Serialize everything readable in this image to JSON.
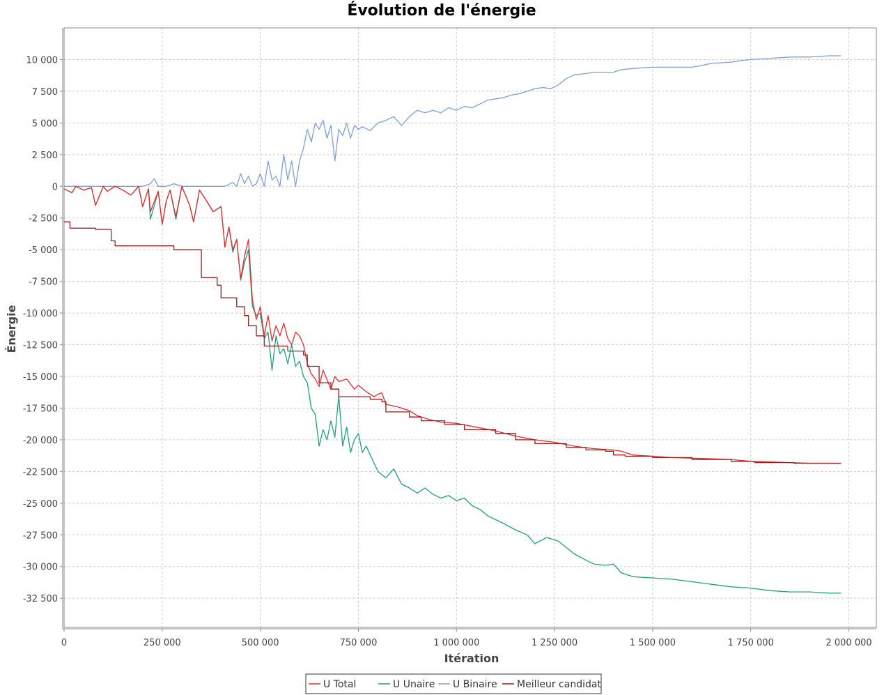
{
  "chart_data": {
    "type": "line",
    "title": "Évolution de l'énergie",
    "xlabel": "Itération",
    "ylabel": "Énergie",
    "xlim": [
      0,
      2070000
    ],
    "ylim": [
      -34800,
      12500
    ],
    "grid": true,
    "legend_position": "bottom-center",
    "x_ticks": [
      0,
      250000,
      500000,
      750000,
      1000000,
      1250000,
      1500000,
      1750000,
      2000000
    ],
    "x_tick_labels": [
      "0",
      "250 000",
      "500 000",
      "750 000",
      "1 000 000",
      "1 250 000",
      "1 500 000",
      "1 750 000",
      "2 000 000"
    ],
    "y_ticks": [
      10000,
      7500,
      5000,
      2500,
      0,
      -2500,
      -5000,
      -7500,
      -10000,
      -12500,
      -15000,
      -17500,
      -20000,
      -22500,
      -25000,
      -27500,
      -30000,
      -32500
    ],
    "y_tick_labels": [
      "10 000",
      "7 500",
      "5 000",
      "2 500",
      "0",
      "-2 500",
      "-5 000",
      "-7 500",
      "-10 000",
      "-12 500",
      "-15 000",
      "-17 500",
      "-20 000",
      "-22 500",
      "-25 000",
      "-27 500",
      "-30 000",
      "-32 500"
    ],
    "series": [
      {
        "name": "U Total",
        "color": "#e8292b",
        "x": [
          0,
          20000,
          30000,
          50000,
          70000,
          80000,
          100000,
          110000,
          130000,
          150000,
          170000,
          190000,
          200000,
          215000,
          220000,
          240000,
          250000,
          260000,
          270000,
          285000,
          300000,
          320000,
          330000,
          345000,
          360000,
          380000,
          400000,
          410000,
          420000,
          430000,
          440000,
          450000,
          460000,
          470000,
          480000,
          490000,
          500000,
          510000,
          520000,
          530000,
          540000,
          550000,
          560000,
          570000,
          580000,
          590000,
          600000,
          610000,
          620000,
          630000,
          640000,
          650000,
          660000,
          680000,
          690000,
          700000,
          720000,
          740000,
          750000,
          770000,
          790000,
          800000,
          810000,
          820000,
          850000,
          880000,
          900000,
          930000,
          960000,
          1000000,
          1050000,
          1100000,
          1150000,
          1200000,
          1250000,
          1300000,
          1350000,
          1400000,
          1420000,
          1450000,
          1500000,
          1550000,
          1600000,
          1650000,
          1700000,
          1750000,
          1800000,
          1850000,
          1900000,
          1950000,
          1980000
        ],
        "y": [
          -200,
          -500,
          0,
          -300,
          -100,
          -1500,
          0,
          -400,
          0,
          -300,
          -700,
          0,
          -1600,
          -200,
          -2000,
          -400,
          -3000,
          -1200,
          -300,
          -2400,
          0,
          -1500,
          -2800,
          -300,
          -1000,
          -2000,
          -1600,
          -4800,
          -3200,
          -5000,
          -4200,
          -7300,
          -5500,
          -4200,
          -9000,
          -10500,
          -9500,
          -11800,
          -10200,
          -12200,
          -11000,
          -11800,
          -10800,
          -12000,
          -12500,
          -11500,
          -11800,
          -12500,
          -14000,
          -14800,
          -15200,
          -15800,
          -14500,
          -16000,
          -15000,
          -15400,
          -15200,
          -16000,
          -15700,
          -16200,
          -16600,
          -16400,
          -16300,
          -17200,
          -17400,
          -17700,
          -18100,
          -18400,
          -18600,
          -18700,
          -19000,
          -19300,
          -19700,
          -20000,
          -20200,
          -20500,
          -20700,
          -20800,
          -20900,
          -21200,
          -21300,
          -21400,
          -21450,
          -21500,
          -21550,
          -21700,
          -21750,
          -21800,
          -21850,
          -21850,
          -21850
        ]
      },
      {
        "name": "U Unaire",
        "color": "#1aa37a",
        "x": [
          0,
          20000,
          30000,
          50000,
          70000,
          80000,
          100000,
          110000,
          130000,
          150000,
          170000,
          190000,
          200000,
          215000,
          220000,
          240000,
          250000,
          260000,
          270000,
          285000,
          300000,
          320000,
          330000,
          345000,
          360000,
          380000,
          400000,
          410000,
          420000,
          430000,
          440000,
          450000,
          460000,
          470000,
          480000,
          490000,
          500000,
          510000,
          520000,
          530000,
          540000,
          550000,
          560000,
          570000,
          580000,
          590000,
          600000,
          610000,
          620000,
          630000,
          640000,
          650000,
          660000,
          670000,
          680000,
          690000,
          700000,
          710000,
          720000,
          730000,
          740000,
          750000,
          760000,
          770000,
          780000,
          800000,
          820000,
          840000,
          860000,
          880000,
          900000,
          920000,
          940000,
          960000,
          980000,
          1000000,
          1020000,
          1040000,
          1060000,
          1080000,
          1100000,
          1120000,
          1150000,
          1180000,
          1200000,
          1230000,
          1260000,
          1280000,
          1300000,
          1330000,
          1350000,
          1380000,
          1400000,
          1420000,
          1450000,
          1500000,
          1550000,
          1600000,
          1650000,
          1700000,
          1750000,
          1800000,
          1850000,
          1900000,
          1950000,
          1980000
        ],
        "y": [
          -200,
          -500,
          0,
          -300,
          -100,
          -1500,
          0,
          -400,
          0,
          -300,
          -700,
          0,
          -1600,
          -200,
          -2600,
          -400,
          -3000,
          -1200,
          -300,
          -2600,
          0,
          -1500,
          -2800,
          -300,
          -1000,
          -2000,
          -1600,
          -4800,
          -3200,
          -5200,
          -4200,
          -7400,
          -6000,
          -5000,
          -9500,
          -10200,
          -10000,
          -12000,
          -11500,
          -14500,
          -11800,
          -13200,
          -12800,
          -14000,
          -12500,
          -14200,
          -13800,
          -15000,
          -15500,
          -17500,
          -18000,
          -20500,
          -19200,
          -20000,
          -18500,
          -19800,
          -16500,
          -20500,
          -19000,
          -21000,
          -20000,
          -19500,
          -21000,
          -20500,
          -21200,
          -22500,
          -23000,
          -22300,
          -23500,
          -23800,
          -24200,
          -23800,
          -24300,
          -24600,
          -24400,
          -24800,
          -24600,
          -25200,
          -25500,
          -26000,
          -26300,
          -26600,
          -27100,
          -27500,
          -28200,
          -27700,
          -28000,
          -28500,
          -29000,
          -29500,
          -29800,
          -29900,
          -29800,
          -30500,
          -30800,
          -30900,
          -31000,
          -31200,
          -31400,
          -31600,
          -31700,
          -31900,
          -32000,
          -32000,
          -32100,
          -32100
        ]
      },
      {
        "name": "U Binaire",
        "color": "#7b9fd9",
        "x": [
          0,
          20000,
          50000,
          100000,
          150000,
          200000,
          220000,
          230000,
          240000,
          260000,
          280000,
          300000,
          320000,
          350000,
          380000,
          400000,
          410000,
          430000,
          440000,
          450000,
          460000,
          470000,
          480000,
          490000,
          500000,
          510000,
          520000,
          530000,
          540000,
          550000,
          560000,
          570000,
          580000,
          590000,
          600000,
          610000,
          620000,
          630000,
          640000,
          650000,
          660000,
          670000,
          680000,
          690000,
          700000,
          710000,
          720000,
          730000,
          740000,
          750000,
          760000,
          780000,
          800000,
          820000,
          840000,
          860000,
          880000,
          900000,
          920000,
          940000,
          960000,
          980000,
          1000000,
          1020000,
          1040000,
          1060000,
          1080000,
          1100000,
          1120000,
          1140000,
          1160000,
          1180000,
          1200000,
          1220000,
          1240000,
          1260000,
          1280000,
          1300000,
          1330000,
          1350000,
          1400000,
          1420000,
          1450000,
          1500000,
          1550000,
          1600000,
          1620000,
          1650000,
          1700000,
          1720000,
          1750000,
          1800000,
          1850000,
          1900000,
          1950000,
          1980000
        ],
        "y": [
          0,
          0,
          0,
          0,
          0,
          0,
          200,
          600,
          0,
          0,
          200,
          0,
          0,
          0,
          0,
          0,
          0,
          300,
          0,
          1000,
          200,
          800,
          0,
          200,
          1000,
          0,
          2000,
          500,
          800,
          0,
          2500,
          500,
          2000,
          0,
          2000,
          3000,
          4500,
          3500,
          5000,
          4500,
          5200,
          3800,
          4800,
          2000,
          4500,
          4000,
          5000,
          3800,
          4800,
          4500,
          4700,
          4400,
          5000,
          5200,
          5500,
          4800,
          5500,
          6000,
          5800,
          6000,
          5800,
          6200,
          6000,
          6300,
          6200,
          6500,
          6800,
          6900,
          7000,
          7200,
          7300,
          7500,
          7700,
          7800,
          7700,
          8000,
          8500,
          8800,
          8900,
          9000,
          9000,
          9200,
          9300,
          9400,
          9400,
          9400,
          9500,
          9700,
          9800,
          9900,
          10000,
          10100,
          10200,
          10200,
          10300,
          10300
        ]
      },
      {
        "name": "Meilleur candidat",
        "color": "#a01818",
        "x": [
          0,
          15000,
          15000,
          80000,
          80000,
          120000,
          120000,
          130000,
          130000,
          280000,
          280000,
          350000,
          350000,
          390000,
          390000,
          400000,
          400000,
          440000,
          440000,
          460000,
          460000,
          470000,
          470000,
          490000,
          490000,
          510000,
          510000,
          570000,
          570000,
          610000,
          610000,
          620000,
          620000,
          650000,
          650000,
          680000,
          680000,
          700000,
          700000,
          780000,
          780000,
          810000,
          810000,
          820000,
          820000,
          880000,
          880000,
          910000,
          910000,
          970000,
          970000,
          1020000,
          1020000,
          1100000,
          1100000,
          1150000,
          1150000,
          1200000,
          1200000,
          1280000,
          1280000,
          1330000,
          1330000,
          1380000,
          1380000,
          1400000,
          1400000,
          1430000,
          1430000,
          1500000,
          1500000,
          1600000,
          1600000,
          1700000,
          1700000,
          1760000,
          1760000,
          1860000,
          1860000,
          1980000
        ],
        "y": [
          -2800,
          -2800,
          -3300,
          -3300,
          -3400,
          -3400,
          -4300,
          -4300,
          -4700,
          -4700,
          -5000,
          -5000,
          -7200,
          -7200,
          -7800,
          -7800,
          -8800,
          -8800,
          -9500,
          -9500,
          -10200,
          -10200,
          -11000,
          -11000,
          -11800,
          -11800,
          -12600,
          -12600,
          -13000,
          -13000,
          -13300,
          -13300,
          -14200,
          -14200,
          -15500,
          -15500,
          -16000,
          -16000,
          -16600,
          -16600,
          -16800,
          -16800,
          -17000,
          -17000,
          -17800,
          -17800,
          -18200,
          -18200,
          -18500,
          -18500,
          -18800,
          -18800,
          -19200,
          -19200,
          -19500,
          -19500,
          -20000,
          -20000,
          -20300,
          -20300,
          -20600,
          -20600,
          -20800,
          -20800,
          -20900,
          -20900,
          -21200,
          -21200,
          -21300,
          -21300,
          -21400,
          -21400,
          -21550,
          -21550,
          -21700,
          -21700,
          -21800,
          -21800,
          -21850,
          -21850
        ]
      }
    ]
  }
}
